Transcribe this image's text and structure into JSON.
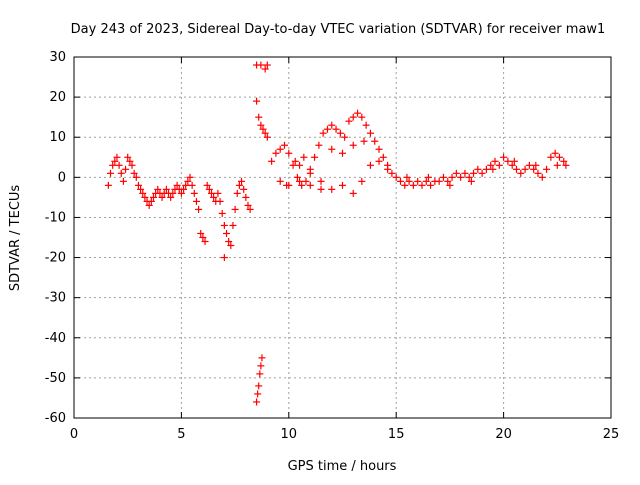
{
  "chart_data": {
    "type": "scatter",
    "title": "Day 243 of 2023, Sidereal Day-to-day VTEC variation (SDTVAR) for receiver maw1",
    "xlabel": "GPS time / hours",
    "ylabel": "SDTVAR / TECUs",
    "xlim": [
      0,
      25
    ],
    "ylim": [
      -60,
      30
    ],
    "x_ticks": [
      0,
      5,
      10,
      15,
      20,
      25
    ],
    "y_ticks": [
      -60,
      -50,
      -40,
      -30,
      -20,
      -10,
      0,
      10,
      20,
      30
    ],
    "grid": true,
    "marker": "+",
    "color": "#ff0000",
    "series": [
      {
        "name": "SDTVAR",
        "points": [
          [
            1.6,
            -2
          ],
          [
            1.7,
            1
          ],
          [
            1.8,
            3
          ],
          [
            1.9,
            4
          ],
          [
            2.0,
            5
          ],
          [
            2.1,
            3
          ],
          [
            2.2,
            1
          ],
          [
            2.3,
            -1
          ],
          [
            2.4,
            2
          ],
          [
            2.5,
            5
          ],
          [
            2.6,
            4
          ],
          [
            2.7,
            3
          ],
          [
            2.8,
            1
          ],
          [
            2.9,
            0
          ],
          [
            3.0,
            -2
          ],
          [
            3.1,
            -3
          ],
          [
            3.2,
            -4
          ],
          [
            3.3,
            -5
          ],
          [
            3.4,
            -6
          ],
          [
            3.5,
            -7
          ],
          [
            3.6,
            -6
          ],
          [
            3.7,
            -5
          ],
          [
            3.8,
            -4
          ],
          [
            3.9,
            -3
          ],
          [
            4.0,
            -4
          ],
          [
            4.1,
            -5
          ],
          [
            4.2,
            -4
          ],
          [
            4.3,
            -3
          ],
          [
            4.4,
            -4
          ],
          [
            4.5,
            -5
          ],
          [
            4.6,
            -4
          ],
          [
            4.7,
            -3
          ],
          [
            4.8,
            -2
          ],
          [
            4.9,
            -3
          ],
          [
            5.0,
            -4
          ],
          [
            5.1,
            -3
          ],
          [
            5.2,
            -2
          ],
          [
            5.3,
            -1
          ],
          [
            5.4,
            0
          ],
          [
            5.5,
            -2
          ],
          [
            5.6,
            -4
          ],
          [
            5.7,
            -6
          ],
          [
            5.8,
            -8
          ],
          [
            5.9,
            -14
          ],
          [
            6.0,
            -15
          ],
          [
            6.1,
            -16
          ],
          [
            6.2,
            -2
          ],
          [
            6.3,
            -3
          ],
          [
            6.4,
            -4
          ],
          [
            6.5,
            -5
          ],
          [
            6.6,
            -6
          ],
          [
            6.7,
            -4
          ],
          [
            6.8,
            -6
          ],
          [
            6.9,
            -9
          ],
          [
            7.0,
            -20
          ],
          [
            7.0,
            -12
          ],
          [
            7.1,
            -14
          ],
          [
            7.2,
            -16
          ],
          [
            7.3,
            -17
          ],
          [
            7.4,
            -12
          ],
          [
            7.5,
            -8
          ],
          [
            7.6,
            -4
          ],
          [
            7.7,
            -2
          ],
          [
            7.8,
            -1
          ],
          [
            7.9,
            -3
          ],
          [
            8.0,
            -5
          ],
          [
            8.1,
            -7
          ],
          [
            8.2,
            -8
          ],
          [
            8.5,
            19
          ],
          [
            8.6,
            15
          ],
          [
            8.7,
            13
          ],
          [
            8.8,
            12
          ],
          [
            8.9,
            11
          ],
          [
            9.0,
            10
          ],
          [
            8.5,
            28
          ],
          [
            8.7,
            28
          ],
          [
            8.9,
            27
          ],
          [
            9.0,
            28
          ],
          [
            8.5,
            -56
          ],
          [
            8.55,
            -54
          ],
          [
            8.6,
            -52
          ],
          [
            8.65,
            -49
          ],
          [
            8.7,
            -47
          ],
          [
            8.75,
            -45
          ],
          [
            9.2,
            4
          ],
          [
            9.4,
            6
          ],
          [
            9.6,
            7
          ],
          [
            9.8,
            8
          ],
          [
            10.0,
            6
          ],
          [
            10.2,
            3
          ],
          [
            10.4,
            0
          ],
          [
            10.6,
            -2
          ],
          [
            10.8,
            -1
          ],
          [
            11.0,
            2
          ],
          [
            11.2,
            5
          ],
          [
            11.4,
            8
          ],
          [
            11.6,
            11
          ],
          [
            11.8,
            12
          ],
          [
            12.0,
            13
          ],
          [
            12.2,
            12
          ],
          [
            12.4,
            11
          ],
          [
            12.6,
            10
          ],
          [
            12.8,
            14
          ],
          [
            13.0,
            15
          ],
          [
            13.2,
            16
          ],
          [
            13.4,
            15
          ],
          [
            13.6,
            13
          ],
          [
            13.8,
            11
          ],
          [
            14.0,
            9
          ],
          [
            14.2,
            7
          ],
          [
            14.4,
            5
          ],
          [
            14.6,
            3
          ],
          [
            14.8,
            1
          ],
          [
            15.0,
            0
          ],
          [
            15.2,
            -1
          ],
          [
            15.4,
            -2
          ],
          [
            15.6,
            -1
          ],
          [
            15.8,
            -2
          ],
          [
            16.0,
            -1
          ],
          [
            16.2,
            -2
          ],
          [
            16.4,
            -1
          ],
          [
            16.6,
            -2
          ],
          [
            16.8,
            -1
          ],
          [
            17.0,
            -1
          ],
          [
            17.2,
            0
          ],
          [
            17.4,
            -1
          ],
          [
            17.6,
            0
          ],
          [
            17.8,
            1
          ],
          [
            18.0,
            0
          ],
          [
            18.2,
            1
          ],
          [
            18.4,
            0
          ],
          [
            18.6,
            1
          ],
          [
            18.8,
            2
          ],
          [
            19.0,
            1
          ],
          [
            19.2,
            2
          ],
          [
            19.4,
            3
          ],
          [
            19.6,
            4
          ],
          [
            19.8,
            3
          ],
          [
            20.0,
            5
          ],
          [
            20.2,
            4
          ],
          [
            20.4,
            3
          ],
          [
            20.6,
            2
          ],
          [
            20.8,
            1
          ],
          [
            21.0,
            2
          ],
          [
            21.2,
            3
          ],
          [
            21.4,
            2
          ],
          [
            21.6,
            1
          ],
          [
            21.8,
            0
          ],
          [
            22.0,
            2
          ],
          [
            22.2,
            5
          ],
          [
            22.4,
            6
          ],
          [
            22.6,
            5
          ],
          [
            22.8,
            4
          ],
          [
            22.9,
            3
          ],
          [
            10.5,
            3
          ],
          [
            11.0,
            1
          ],
          [
            11.5,
            -1
          ],
          [
            12.0,
            -3
          ],
          [
            12.5,
            -2
          ],
          [
            13.0,
            -4
          ],
          [
            13.4,
            -1
          ],
          [
            13.8,
            3
          ],
          [
            14.2,
            4
          ],
          [
            14.6,
            2
          ],
          [
            10.0,
            -2
          ],
          [
            10.5,
            -1
          ],
          [
            11.0,
            -2
          ],
          [
            11.5,
            -3
          ],
          [
            12.0,
            7
          ],
          [
            12.5,
            6
          ],
          [
            13.0,
            8
          ],
          [
            13.5,
            9
          ],
          [
            9.6,
            -1
          ],
          [
            9.9,
            -2
          ],
          [
            10.3,
            4
          ],
          [
            10.7,
            5
          ],
          [
            15.5,
            0
          ],
          [
            16.5,
            0
          ],
          [
            17.5,
            -2
          ],
          [
            18.5,
            -1
          ],
          [
            19.5,
            2
          ],
          [
            20.5,
            4
          ],
          [
            21.5,
            3
          ],
          [
            22.5,
            3
          ]
        ]
      }
    ]
  }
}
